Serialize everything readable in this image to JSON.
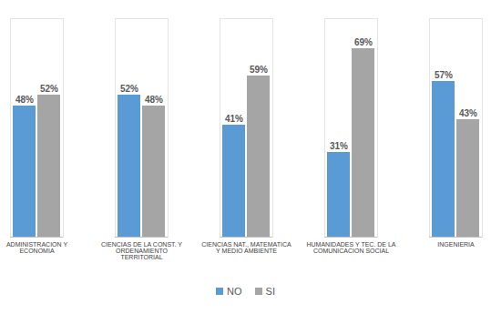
{
  "chart_data": {
    "type": "bar",
    "categories": [
      "ADMINISTRACION Y ECONOMIA",
      "CIENCIAS DE LA CONST. Y ORDENAMIENTO TERRITORIAL",
      "CIENCIAS NAT., MATEMATICA Y MEDIO AMBIENTE",
      "HUMANIDADES Y TEC. DE LA COMUNICACION SOCIAL",
      "INGENIERIA"
    ],
    "series": [
      {
        "name": "NO",
        "color": "#5b9bd5",
        "values": [
          48,
          52,
          41,
          31,
          57
        ],
        "value_labels": [
          "48%",
          "52%",
          "41%",
          "31%",
          "57%"
        ]
      },
      {
        "name": "SI",
        "color": "#a5a5a5",
        "values": [
          52,
          48,
          59,
          69,
          43
        ],
        "value_labels": [
          "52%",
          "48%",
          "59%",
          "69%",
          "43%"
        ]
      }
    ],
    "ylim": [
      0,
      80
    ],
    "grid": false,
    "legend": "bottom",
    "data_labels": true,
    "tick_labels": "x"
  }
}
